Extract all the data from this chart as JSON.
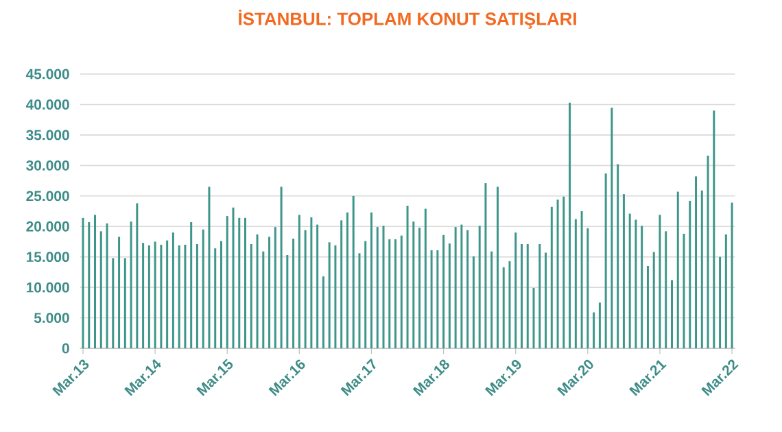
{
  "chart_data": {
    "type": "bar",
    "title": "İSTANBUL: TOPLAM KONUT SATIŞLARI",
    "categories": [
      "Mar.13",
      null,
      null,
      null,
      null,
      null,
      null,
      null,
      null,
      null,
      null,
      null,
      "Mar.14",
      null,
      null,
      null,
      null,
      null,
      null,
      null,
      null,
      null,
      null,
      null,
      "Mar.15",
      null,
      null,
      null,
      null,
      null,
      null,
      null,
      null,
      null,
      null,
      null,
      "Mar.16",
      null,
      null,
      null,
      null,
      null,
      null,
      null,
      null,
      null,
      null,
      null,
      "Mar.17",
      null,
      null,
      null,
      null,
      null,
      null,
      null,
      null,
      null,
      null,
      null,
      "Mar.18",
      null,
      null,
      null,
      null,
      null,
      null,
      null,
      null,
      null,
      null,
      null,
      "Mar.19",
      null,
      null,
      null,
      null,
      null,
      null,
      null,
      null,
      null,
      null,
      null,
      "Mar.20",
      null,
      null,
      null,
      null,
      null,
      null,
      null,
      null,
      null,
      null,
      null,
      "Mar.21",
      null,
      null,
      null,
      null,
      null,
      null,
      null,
      null,
      null,
      null,
      null,
      "Mar.22"
    ],
    "values": [
      21400,
      20700,
      21900,
      19200,
      20500,
      14800,
      18300,
      14800,
      20800,
      23800,
      17300,
      16900,
      17500,
      17000,
      17700,
      19000,
      16900,
      17000,
      20700,
      17100,
      19500,
      26500,
      16400,
      17600,
      21700,
      23100,
      21400,
      21400,
      17100,
      18700,
      15900,
      18300,
      19900,
      26500,
      15300,
      18000,
      21900,
      19400,
      21500,
      20300,
      11800,
      17400,
      16900,
      21000,
      22300,
      25000,
      15600,
      17600,
      22300,
      19900,
      20100,
      17900,
      17900,
      18500,
      23400,
      20800,
      19800,
      22900,
      16100,
      16100,
      18600,
      17200,
      19900,
      20300,
      19400,
      15100,
      20100,
      27100,
      15900,
      26500,
      13300,
      14300,
      19000,
      17100,
      17100,
      9900,
      17100,
      15700,
      23200,
      24400,
      24900,
      40300,
      21200,
      22500,
      19700,
      5900,
      7500,
      28700,
      39500,
      30200,
      25300,
      22100,
      21100,
      20100,
      13500,
      15800,
      21900,
      19200,
      11200,
      25700,
      18800,
      24200,
      28200,
      25900,
      31600,
      39000,
      15000,
      18700,
      23900
    ],
    "color": "#3e968a",
    "ylim": [
      0,
      45000
    ],
    "yticks": [
      {
        "value": 0,
        "label": "0"
      },
      {
        "value": 5000,
        "label": "5.000"
      },
      {
        "value": 10000,
        "label": "10.000"
      },
      {
        "value": 15000,
        "label": "15.000"
      },
      {
        "value": 20000,
        "label": "20.000"
      },
      {
        "value": 25000,
        "label": "25.000"
      },
      {
        "value": 30000,
        "label": "30.000"
      },
      {
        "value": 35000,
        "label": "35.000"
      },
      {
        "value": 40000,
        "label": "40.000"
      },
      {
        "value": 45000,
        "label": "45.000"
      }
    ],
    "grid": "y"
  }
}
